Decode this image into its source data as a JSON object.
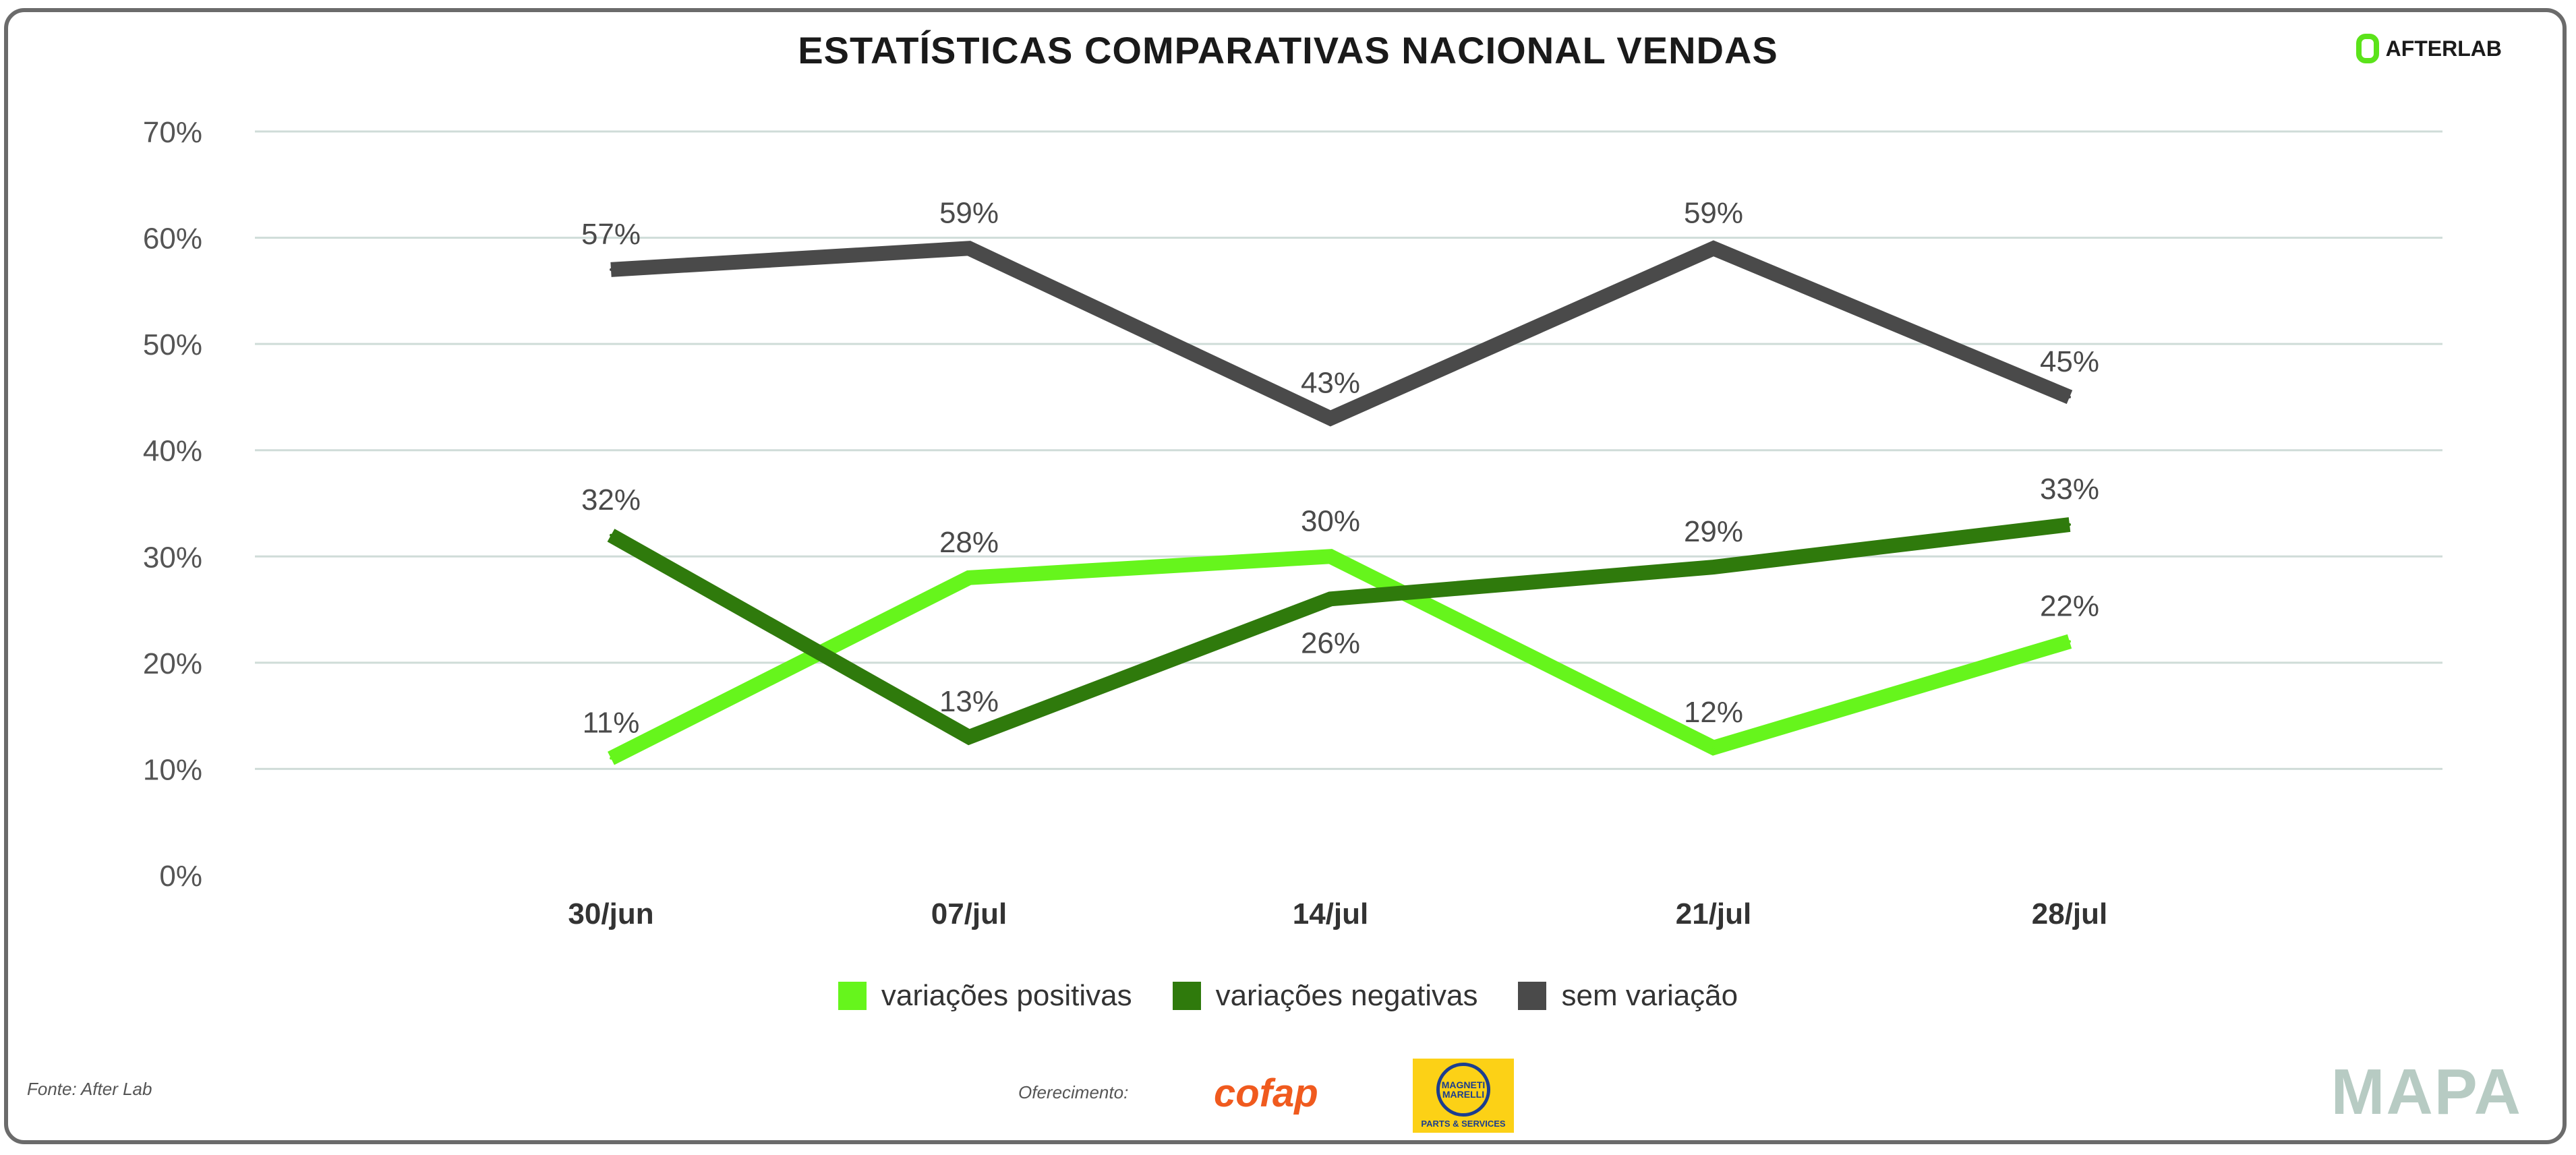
{
  "header": {
    "title": "ESTATÍSTICAS COMPARATIVAS NACIONAL VENDAS",
    "brand": "AFTERLAB"
  },
  "chart_data": {
    "type": "line",
    "title": "ESTATÍSTICAS COMPARATIVAS NACIONAL VENDAS",
    "categories": [
      "30/jun",
      "07/jul",
      "14/jul",
      "21/jul",
      "28/jul"
    ],
    "yticks": [
      "0%",
      "10%",
      "20%",
      "30%",
      "40%",
      "50%",
      "60%",
      "70%"
    ],
    "ylim": [
      0,
      70
    ],
    "grid": true,
    "legend_position": "bottom",
    "series": [
      {
        "name": "variações positivas",
        "color": "#66f51c",
        "values": [
          11,
          28,
          30,
          12,
          22
        ],
        "labels": [
          "11%",
          "28%",
          "30%",
          "12%",
          "22%"
        ]
      },
      {
        "name": "variações negativas",
        "color": "#2f7a0c",
        "values": [
          32,
          13,
          26,
          29,
          33
        ],
        "labels": [
          "32%",
          "13%",
          "26%",
          "29%",
          "33%"
        ]
      },
      {
        "name": "sem variação",
        "color": "#4a4a4a",
        "values": [
          57,
          59,
          43,
          59,
          45
        ],
        "labels": [
          "57%",
          "59%",
          "43%",
          "59%",
          "45%"
        ]
      }
    ]
  },
  "footer": {
    "source": "Fonte: After Lab",
    "offer": "Oferecimento:",
    "sponsor1": "cofap",
    "sponsor2": "MAGNETI MARELLI",
    "sponsor2_sub": "PARTS & SERVICES",
    "mapa": "MAPA"
  }
}
